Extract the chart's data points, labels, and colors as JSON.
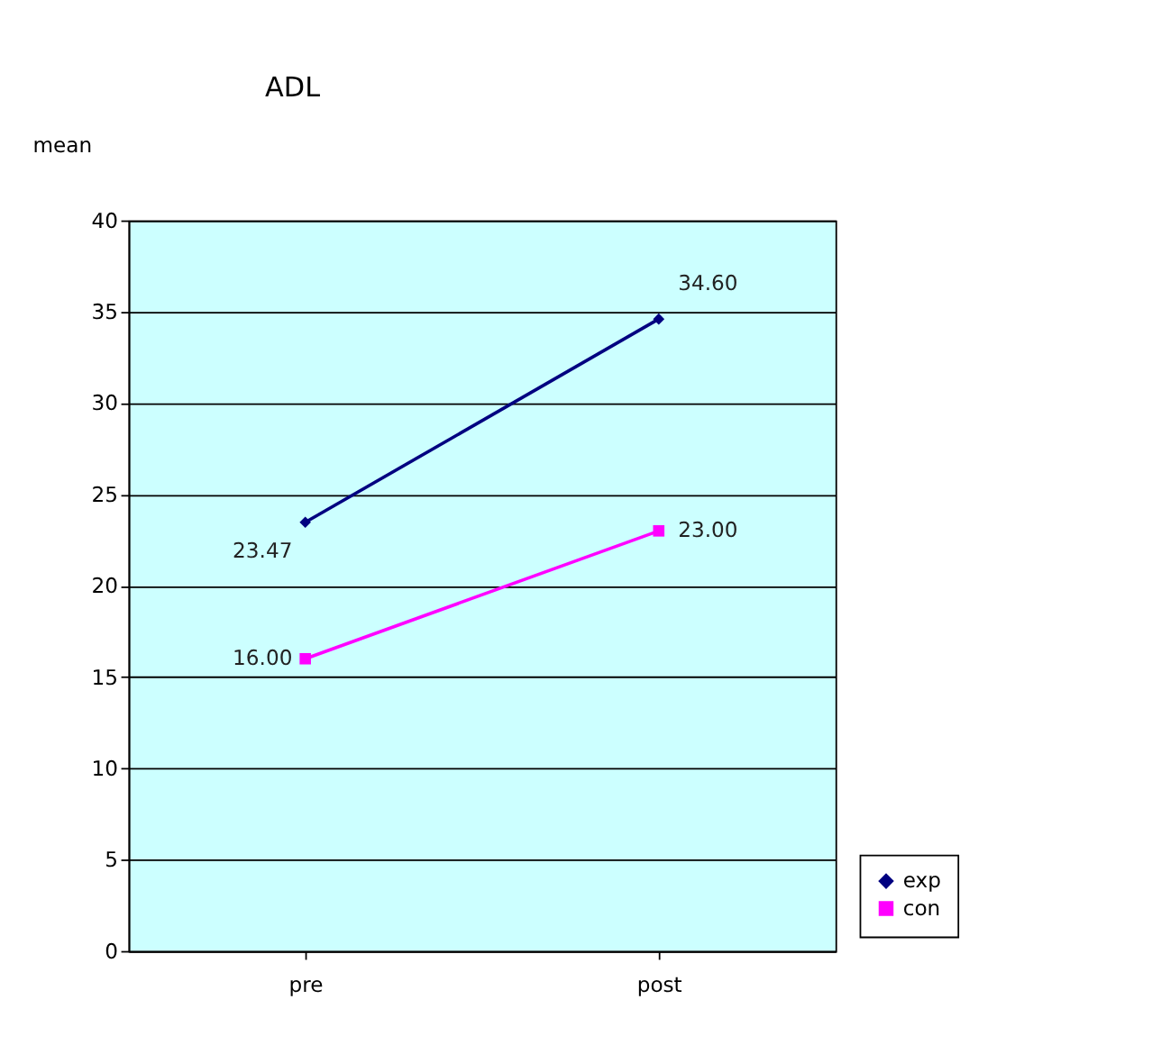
{
  "chart_data": {
    "type": "line",
    "title": "ADL",
    "ylabel": "mean",
    "categories": [
      "pre",
      "post"
    ],
    "series": [
      {
        "name": "exp",
        "color": "#000080",
        "marker": "diamond",
        "values": [
          23.47,
          34.6
        ],
        "value_labels": [
          "23.47",
          "34.60"
        ]
      },
      {
        "name": "con",
        "color": "#ff00ff",
        "marker": "square",
        "values": [
          16.0,
          23.0
        ],
        "value_labels": [
          "16.00",
          "23.00"
        ]
      }
    ],
    "ylim": [
      0,
      40
    ],
    "yticks": [
      0,
      5,
      10,
      15,
      20,
      25,
      30,
      35,
      40
    ],
    "grid": "y",
    "legend": "bottom right",
    "line_style": "solid"
  }
}
